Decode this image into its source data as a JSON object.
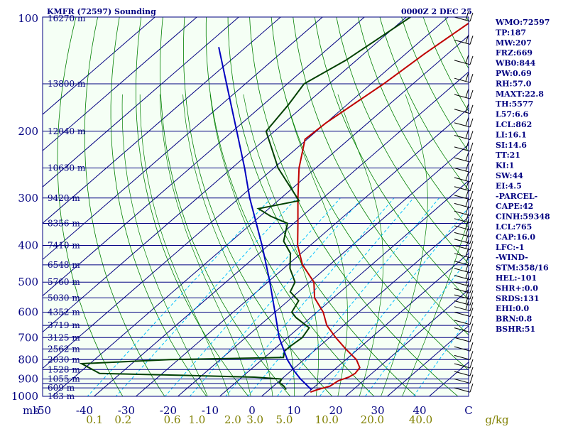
{
  "header": {
    "station": "KMFR (72597) Sounding",
    "time": "0000Z  2 DEC 25"
  },
  "colors": {
    "background": "#ffffff",
    "plot_area": "#f5fff5",
    "isobar": "#000080",
    "isotherm": "#000080",
    "dry_adiabat": "#008000",
    "moist_adiabat": "#008000",
    "mixing_ratio": "#00c0ff",
    "temperature": "#c00000",
    "dewpoint": "#004000",
    "parcel": "#0000c0",
    "wind_barb": "#000000",
    "text": "#000080",
    "mixing_ratio_text": "#808000"
  },
  "chart_data": {
    "type": "line",
    "title": "KMFR (72597) Sounding",
    "subtitle": "0000Z  2 DEC 25",
    "chart_kind": "skew-T log-P",
    "y_axis_scale": "log",
    "ylim": [
      1000,
      100
    ],
    "xlim": [
      -50,
      50
    ],
    "x_unit_label": "C",
    "y_unit_label": "mb",
    "pressure_ticks": [
      "100",
      "200",
      "300",
      "400",
      "500",
      "600",
      "700",
      "800",
      "900",
      "1000"
    ],
    "isobar_levels": [
      100,
      150,
      200,
      250,
      300,
      350,
      400,
      450,
      500,
      550,
      600,
      650,
      700,
      750,
      800,
      850,
      900,
      925,
      950,
      1000
    ],
    "temperature_ticks": [
      "-50",
      "-40",
      "-30",
      "-20",
      "-10",
      "0",
      "10",
      "20",
      "30",
      "40",
      "C"
    ],
    "isotherm_values": [
      -130,
      -120,
      -110,
      -100,
      -90,
      -80,
      -70,
      -60,
      -50,
      -40,
      -30,
      -20,
      -10,
      0,
      10,
      20,
      30,
      40,
      50
    ],
    "height_labels": [
      {
        "p": 100,
        "label": "16270 m"
      },
      {
        "p": 150,
        "label": "13800 m"
      },
      {
        "p": 200,
        "label": "12040 m"
      },
      {
        "p": 250,
        "label": "10630 m"
      },
      {
        "p": 300,
        "label": "9420 m"
      },
      {
        "p": 350,
        "label": "8356 m"
      },
      {
        "p": 400,
        "label": "7410 m"
      },
      {
        "p": 450,
        "label": "6548 m"
      },
      {
        "p": 500,
        "label": "5760 m"
      },
      {
        "p": 550,
        "label": "5030 m"
      },
      {
        "p": 600,
        "label": "4352 m"
      },
      {
        "p": 650,
        "label": "3719 m"
      },
      {
        "p": 700,
        "label": "3125 m"
      },
      {
        "p": 750,
        "label": "2562 m"
      },
      {
        "p": 800,
        "label": "2030 m"
      },
      {
        "p": 850,
        "label": "1528 m"
      },
      {
        "p": 900,
        "label": "1055 m"
      },
      {
        "p": 950,
        "label": "609 m"
      },
      {
        "p": 1000,
        "label": "183 m"
      }
    ],
    "mixing_ratio_labels": [
      {
        "w": 0.1,
        "label": "0.1"
      },
      {
        "w": 0.2,
        "label": "0.2"
      },
      {
        "w": 0.6,
        "label": "0.6"
      },
      {
        "w": 1.0,
        "label": "1.0"
      },
      {
        "w": 2.0,
        "label": "2.0"
      },
      {
        "w": 3.0,
        "label": "3.0"
      },
      {
        "w": 5.0,
        "label": "5.0"
      },
      {
        "w": 10.0,
        "label": "10.0"
      },
      {
        "w": 20.0,
        "label": "20.0"
      },
      {
        "w": 40.0,
        "label": "40.0"
      }
    ],
    "mixing_ratio_unit": "g/kg",
    "dry_adiabats_K": [
      240,
      250,
      260,
      270,
      280,
      290,
      300,
      310,
      320,
      330,
      340,
      350,
      360,
      370,
      380,
      390,
      400,
      410,
      420,
      430,
      440,
      450,
      460,
      470
    ],
    "moist_adiabats_C": [
      -10,
      -5,
      0,
      5,
      10,
      15,
      20,
      25,
      30,
      35
    ],
    "series": [
      {
        "name": "temperature",
        "points": [
          {
            "p": 975,
            "t": 10.5
          },
          {
            "p": 960,
            "t": 11.5
          },
          {
            "p": 940,
            "t": 13.5
          },
          {
            "p": 910,
            "t": 14.0
          },
          {
            "p": 890,
            "t": 15.5
          },
          {
            "p": 870,
            "t": 16.0
          },
          {
            "p": 840,
            "t": 15.5
          },
          {
            "p": 800,
            "t": 12.5
          },
          {
            "p": 750,
            "t": 7.0
          },
          {
            "p": 700,
            "t": 1.5
          },
          {
            "p": 650,
            "t": -4.0
          },
          {
            "p": 600,
            "t": -8.5
          },
          {
            "p": 550,
            "t": -14.5
          },
          {
            "p": 500,
            "t": -19.0
          },
          {
            "p": 450,
            "t": -26.5
          },
          {
            "p": 400,
            "t": -33.0
          },
          {
            "p": 350,
            "t": -39.0
          },
          {
            "p": 300,
            "t": -46.0
          },
          {
            "p": 250,
            "t": -54.0
          },
          {
            "p": 210,
            "t": -60.5
          },
          {
            "p": 190,
            "t": -60.0
          },
          {
            "p": 150,
            "t": -57.0
          },
          {
            "p": 125,
            "t": -55.5
          },
          {
            "p": 100,
            "t": -53.0
          }
        ]
      },
      {
        "name": "dewpoint",
        "points": [
          {
            "p": 960,
            "t": 4.0
          },
          {
            "p": 940,
            "t": 2.5
          },
          {
            "p": 920,
            "t": 0.5
          },
          {
            "p": 900,
            "t": 0.0
          },
          {
            "p": 890,
            "t": -7.0
          },
          {
            "p": 880,
            "t": -25.0
          },
          {
            "p": 870,
            "t": -45.0
          },
          {
            "p": 820,
            "t": -52.0
          },
          {
            "p": 800,
            "t": -32.0
          },
          {
            "p": 790,
            "t": -5.5
          },
          {
            "p": 760,
            "t": -7.0
          },
          {
            "p": 740,
            "t": -7.0
          },
          {
            "p": 700,
            "t": -6.5
          },
          {
            "p": 660,
            "t": -7.5
          },
          {
            "p": 620,
            "t": -13.5
          },
          {
            "p": 600,
            "t": -16.0
          },
          {
            "p": 560,
            "t": -17.5
          },
          {
            "p": 530,
            "t": -22.0
          },
          {
            "p": 500,
            "t": -23.5
          },
          {
            "p": 460,
            "t": -28.5
          },
          {
            "p": 420,
            "t": -32.5
          },
          {
            "p": 390,
            "t": -37.5
          },
          {
            "p": 350,
            "t": -41.5
          },
          {
            "p": 335,
            "t": -47.5
          },
          {
            "p": 320,
            "t": -52.5
          },
          {
            "p": 305,
            "t": -45.0
          },
          {
            "p": 250,
            "t": -59.0
          },
          {
            "p": 200,
            "t": -72.0
          },
          {
            "p": 170,
            "t": -74.0
          },
          {
            "p": 150,
            "t": -76.0
          },
          {
            "p": 130,
            "t": -72.5
          },
          {
            "p": 100,
            "t": -69.0
          }
        ]
      },
      {
        "name": "parcel",
        "points": [
          {
            "p": 960,
            "t": 10.0
          },
          {
            "p": 900,
            "t": 4.5
          },
          {
            "p": 860,
            "t": 1.0
          },
          {
            "p": 800,
            "t": -4.0
          },
          {
            "p": 700,
            "t": -12.0
          },
          {
            "p": 600,
            "t": -20.0
          },
          {
            "p": 500,
            "t": -29.5
          },
          {
            "p": 400,
            "t": -41.5
          },
          {
            "p": 300,
            "t": -57.5
          },
          {
            "p": 250,
            "t": -67.0
          },
          {
            "p": 200,
            "t": -79.0
          },
          {
            "p": 150,
            "t": -94.5
          },
          {
            "p": 120,
            "t": -106.5
          }
        ]
      }
    ],
    "wind_barbs_levels": [
      100,
      115,
      130,
      145,
      160,
      175,
      190,
      205,
      220,
      235,
      250,
      265,
      280,
      295,
      310,
      325,
      340,
      355,
      370,
      385,
      400,
      420,
      440,
      460,
      480,
      500,
      520,
      540,
      560,
      580,
      600,
      630,
      660,
      700,
      740,
      780,
      820,
      860,
      900,
      950
    ],
    "grid": true
  },
  "indices": [
    "WMO:72597",
    "TP:187",
    "MW:207",
    "FRZ:669",
    "WB0:844",
    "PW:0.69",
    "RH:57.0",
    "MAXT:22.8",
    "TH:5577",
    "L57:6.6",
    "LCL:862",
    "LI:16.1",
    "SI:14.6",
    "TT:21",
    "KI:1",
    "SW:44",
    "EI:4.5",
    "-PARCEL-",
    "CAPE:42",
    "CINH:59348",
    "LCL:765",
    "CAP:16.0",
    "LFC:-1",
    "-WIND-",
    "STM:358/16",
    "HEL:-101",
    "SHR+:0.0",
    "SRDS:131",
    "EHI:0.0",
    "BRN:0.8",
    "BSHR:51"
  ]
}
